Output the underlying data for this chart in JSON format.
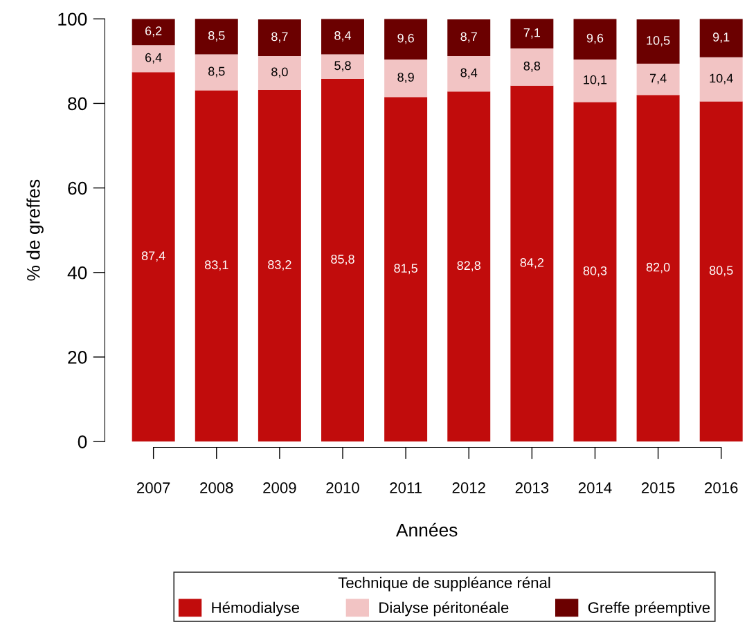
{
  "chart_data": {
    "type": "bar",
    "stacked": true,
    "xlabel": "Années",
    "ylabel": "% de greffes",
    "legend_title": "Technique de suppléance rénal",
    "legend": "bottom",
    "categories": [
      "2007",
      "2008",
      "2009",
      "2010",
      "2011",
      "2012",
      "2013",
      "2014",
      "2015",
      "2016"
    ],
    "ylim": [
      0,
      100
    ],
    "yticks": [
      0,
      20,
      40,
      60,
      80,
      100
    ],
    "grid": false,
    "series": [
      {
        "name": "Hémodialyse",
        "color": "#c10c0c",
        "values": [
          87.4,
          83.1,
          83.2,
          85.8,
          81.5,
          82.8,
          84.2,
          80.3,
          82.0,
          80.5
        ],
        "value_labels": [
          "87,4",
          "83,1",
          "83,2",
          "85,8",
          "81,5",
          "82,8",
          "84,2",
          "80,3",
          "82,0",
          "80,5"
        ]
      },
      {
        "name": "Dialyse péritonéale",
        "color": "#f2c4c4",
        "values": [
          6.4,
          8.5,
          8.0,
          5.8,
          8.9,
          8.4,
          8.8,
          10.1,
          7.4,
          10.4
        ],
        "value_labels": [
          "6,4",
          "8,5",
          "8,0",
          "5,8",
          "8,9",
          "8,4",
          "8,8",
          "10,1",
          "7,4",
          "10,4"
        ]
      },
      {
        "name": "Greffe préemptive",
        "color": "#6b0000",
        "values": [
          6.2,
          8.5,
          8.7,
          8.4,
          9.6,
          8.7,
          7.1,
          9.6,
          10.5,
          9.1
        ],
        "value_labels": [
          "6,2",
          "8,5",
          "8,7",
          "8,4",
          "9,6",
          "8,7",
          "7,1",
          "9,6",
          "10,5",
          "9,1"
        ]
      }
    ]
  }
}
